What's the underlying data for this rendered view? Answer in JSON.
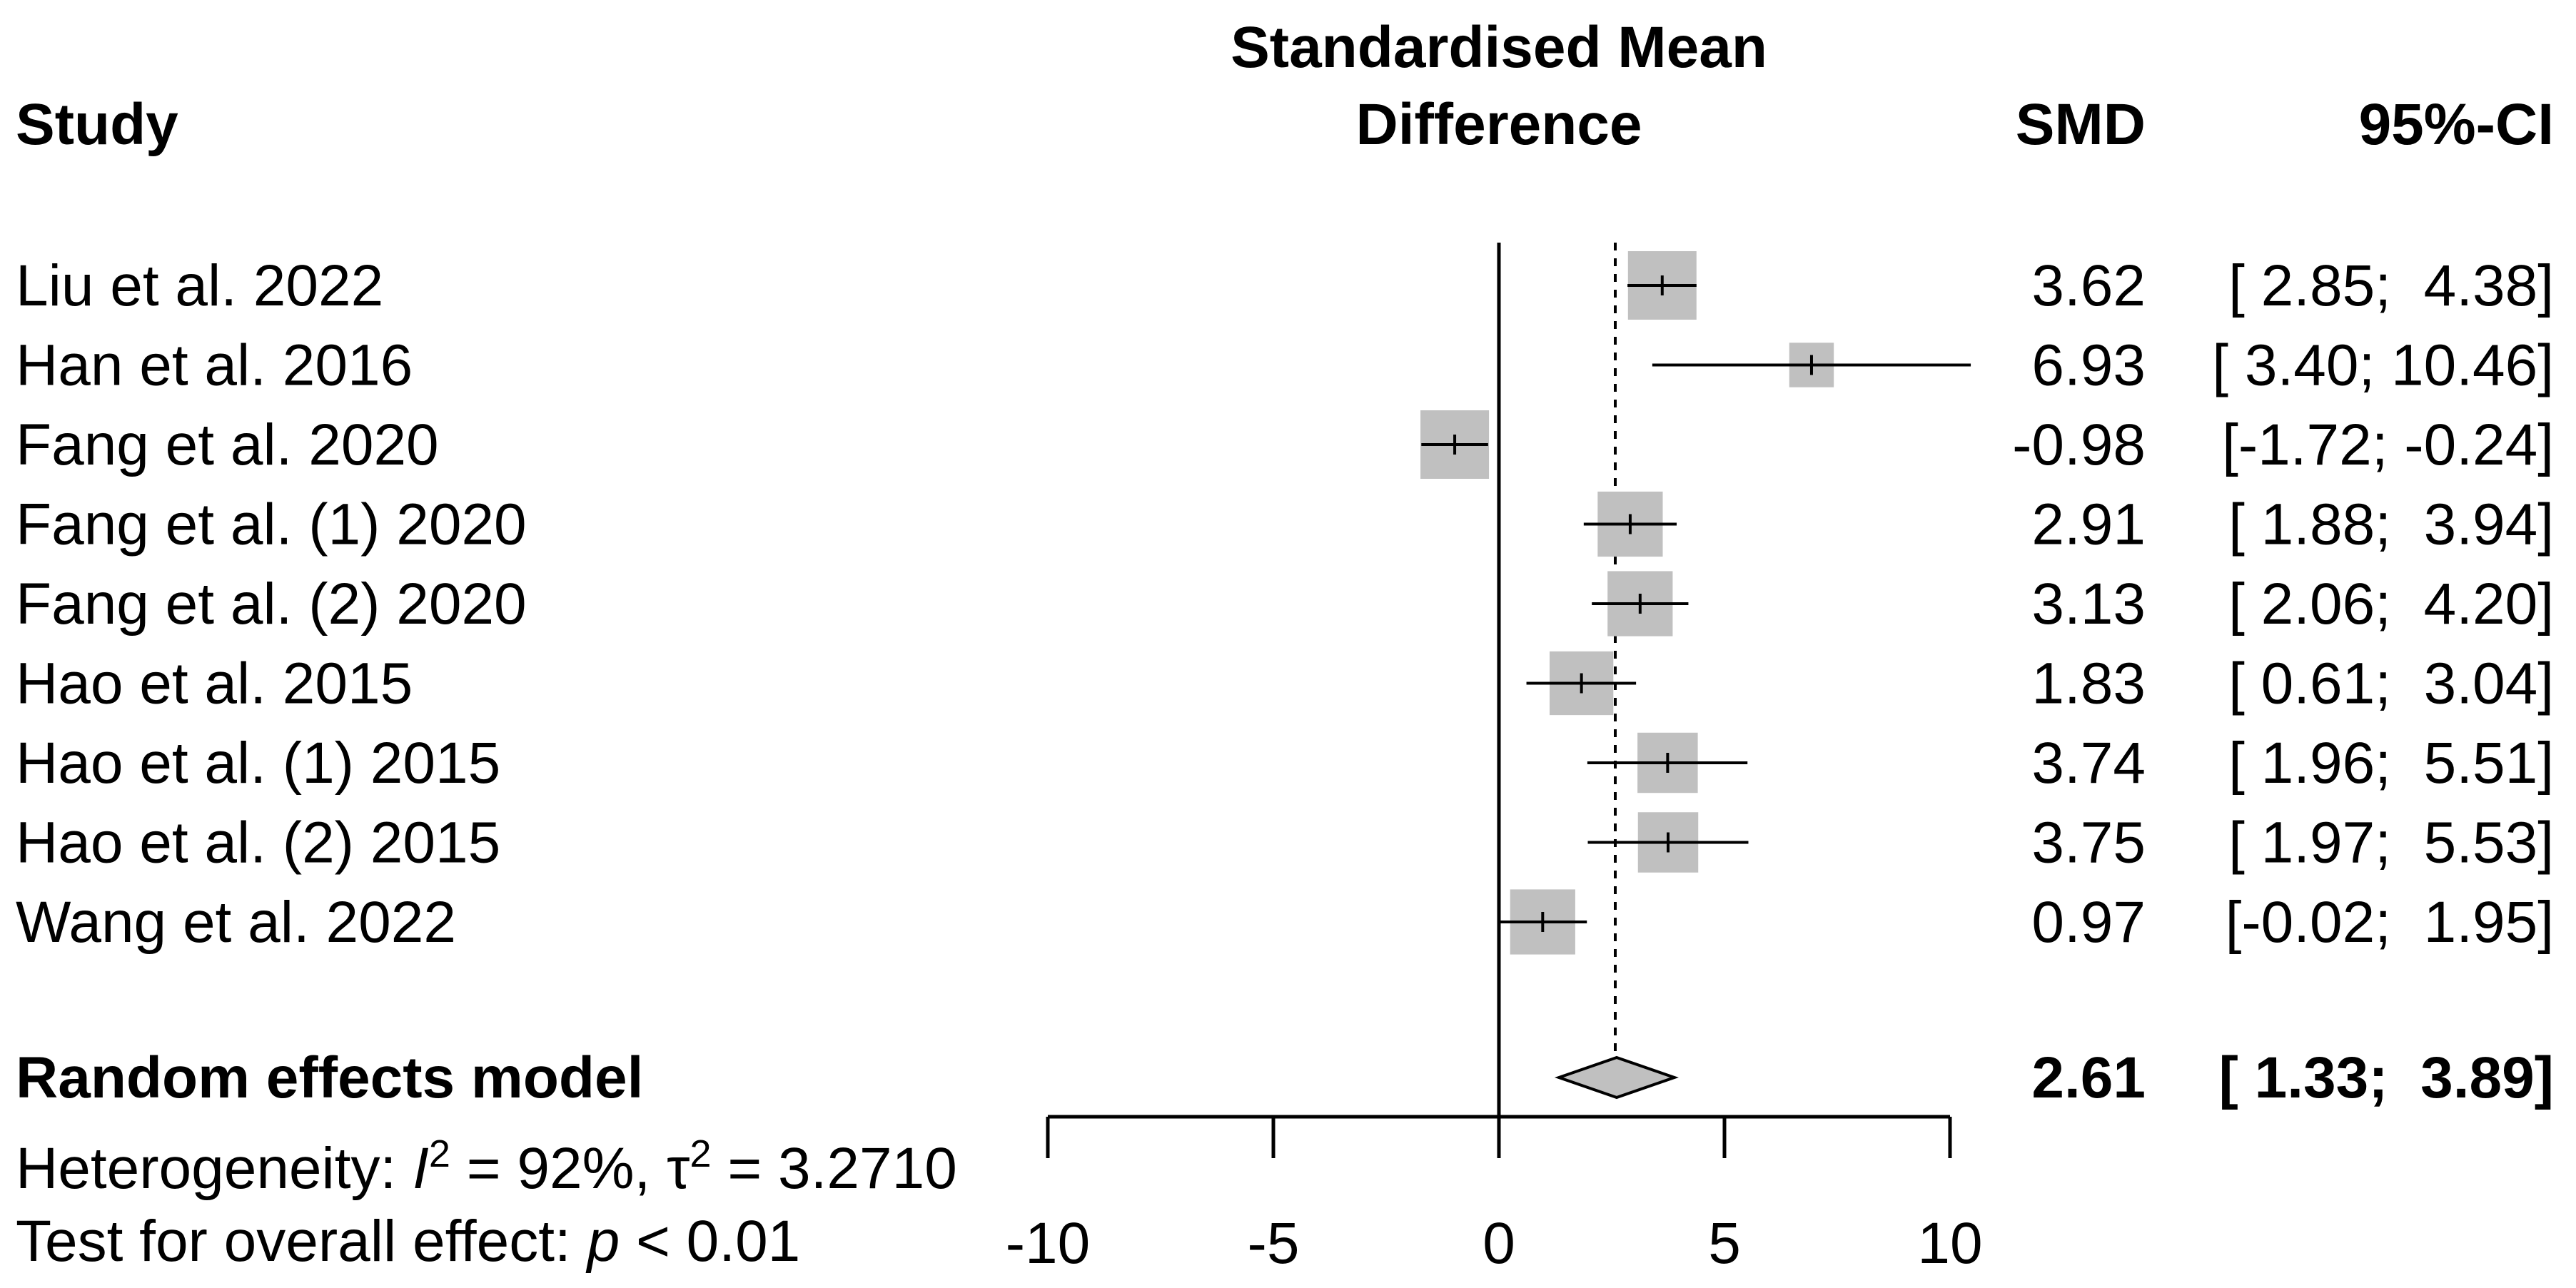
{
  "header": {
    "study": "Study",
    "effect_line1": "Standardised Mean",
    "effect_line2": "Difference",
    "smd": "SMD",
    "ci": "95%-CI"
  },
  "chart_data": {
    "type": "forest",
    "xlim": [
      -10,
      10
    ],
    "xticks": [
      -10,
      -5,
      0,
      5,
      10
    ],
    "xtick_labels": [
      "-10",
      "-5",
      "0",
      "5",
      "10"
    ],
    "null_line": 0,
    "studies": [
      {
        "label": "Liu et al. 2022",
        "smd": 3.62,
        "lower": 2.85,
        "upper": 4.38,
        "smd_text": "3.62",
        "ci_text": "[ 2.85;  4.38]",
        "weight_box": 1.0
      },
      {
        "label": "Han et al. 2016",
        "smd": 6.93,
        "lower": 3.4,
        "upper": 10.46,
        "smd_text": "6.93",
        "ci_text": "[ 3.40; 10.46]",
        "weight_box": 0.65
      },
      {
        "label": "Fang et al. 2020",
        "smd": -0.98,
        "lower": -1.72,
        "upper": -0.24,
        "smd_text": "-0.98",
        "ci_text": "[-1.72; -0.24]",
        "weight_box": 1.0
      },
      {
        "label": "Fang et al. (1) 2020",
        "smd": 2.91,
        "lower": 1.88,
        "upper": 3.94,
        "smd_text": "2.91",
        "ci_text": "[ 1.88;  3.94]",
        "weight_box": 0.95
      },
      {
        "label": "Fang et al. (2) 2020",
        "smd": 3.13,
        "lower": 2.06,
        "upper": 4.2,
        "smd_text": "3.13",
        "ci_text": "[ 2.06;  4.20]",
        "weight_box": 0.95
      },
      {
        "label": "Hao et al. 2015",
        "smd": 1.83,
        "lower": 0.61,
        "upper": 3.04,
        "smd_text": "1.83",
        "ci_text": "[ 0.61;  3.04]",
        "weight_box": 0.93
      },
      {
        "label": "Hao et al. (1) 2015",
        "smd": 3.74,
        "lower": 1.96,
        "upper": 5.51,
        "smd_text": "3.74",
        "ci_text": "[ 1.96;  5.51]",
        "weight_box": 0.88
      },
      {
        "label": "Hao et al. (2) 2015",
        "smd": 3.75,
        "lower": 1.97,
        "upper": 5.53,
        "smd_text": "3.75",
        "ci_text": "[ 1.97;  5.53]",
        "weight_box": 0.88
      },
      {
        "label": "Wang et al. 2022",
        "smd": 0.97,
        "lower": -0.02,
        "upper": 1.95,
        "smd_text": "0.97",
        "ci_text": "[-0.02;  1.95]",
        "weight_box": 0.95
      }
    ],
    "pooled": {
      "label": "Random effects model",
      "smd": 2.61,
      "lower": 1.33,
      "upper": 3.89,
      "smd_text": "2.61",
      "ci_text": "[ 1.33;  3.89]"
    },
    "heterogeneity": {
      "prefix": "Heterogeneity: ",
      "i_symbol": "I",
      "sup_i": "2",
      "i_value": " = 92%, ",
      "tau_symbol": "τ",
      "sup_tau": "2",
      "tau_value": " = 3.2710"
    },
    "overall_test": {
      "prefix": "Test for overall effect:  ",
      "p_symbol": "p",
      "p_value": " < 0.01"
    },
    "colors": {
      "box": "#c0c0c0",
      "line": "#000000",
      "diamond_fill": "#c0c0c0"
    }
  }
}
